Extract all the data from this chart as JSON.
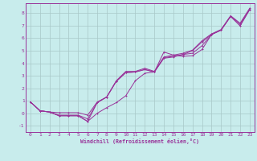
{
  "background_color": "#c8ecec",
  "grid_color": "#a8c8c8",
  "line_color": "#993399",
  "xlabel": "Windchill (Refroidissement éolien,°C)",
  "xlim": [
    -0.5,
    23.5
  ],
  "ylim": [
    -1.5,
    8.8
  ],
  "xticks": [
    0,
    1,
    2,
    3,
    4,
    5,
    6,
    7,
    8,
    9,
    10,
    11,
    12,
    13,
    14,
    15,
    16,
    17,
    18,
    19,
    20,
    21,
    22,
    23
  ],
  "yticks": [
    -1,
    0,
    1,
    2,
    3,
    4,
    5,
    6,
    7,
    8
  ],
  "line1_x": [
    0,
    1,
    2,
    3,
    4,
    5,
    6,
    7,
    8,
    9,
    10,
    11,
    12,
    13,
    14,
    15,
    16,
    17,
    18,
    19,
    20,
    21,
    22,
    23
  ],
  "line1_y": [
    0.9,
    0.2,
    0.1,
    -0.2,
    -0.2,
    -0.2,
    -0.65,
    0.0,
    0.45,
    0.85,
    1.4,
    2.6,
    3.2,
    3.3,
    4.9,
    4.65,
    4.55,
    4.6,
    5.1,
    6.3,
    6.65,
    7.75,
    7.0,
    8.3
  ],
  "line2_x": [
    0,
    1,
    2,
    3,
    4,
    5,
    6,
    7,
    8,
    9,
    10,
    11,
    12,
    13,
    14,
    15,
    16,
    17,
    18,
    19,
    20,
    21,
    22,
    23
  ],
  "line2_y": [
    0.9,
    0.2,
    0.1,
    -0.2,
    -0.2,
    -0.2,
    -0.65,
    0.85,
    1.3,
    2.55,
    3.25,
    3.3,
    3.5,
    3.3,
    4.4,
    4.5,
    4.7,
    4.8,
    5.4,
    6.3,
    6.65,
    7.75,
    7.0,
    8.3
  ],
  "line3_x": [
    0,
    1,
    2,
    3,
    4,
    5,
    6,
    7,
    8,
    9,
    10,
    11,
    12,
    13,
    14,
    15,
    16,
    17,
    18,
    19,
    20,
    21,
    22,
    23
  ],
  "line3_y": [
    0.9,
    0.2,
    0.1,
    -0.15,
    -0.15,
    -0.15,
    -0.45,
    0.85,
    1.3,
    2.55,
    3.25,
    3.3,
    3.5,
    3.3,
    4.45,
    4.55,
    4.7,
    5.0,
    5.7,
    6.3,
    6.65,
    7.75,
    7.15,
    8.3
  ],
  "line4_x": [
    0,
    1,
    2,
    3,
    4,
    5,
    6,
    7,
    8,
    9,
    10,
    11,
    12,
    13,
    14,
    15,
    16,
    17,
    18,
    19,
    20,
    21,
    22,
    23
  ],
  "line4_y": [
    0.9,
    0.2,
    0.1,
    0.05,
    0.05,
    0.05,
    -0.15,
    0.9,
    1.3,
    2.6,
    3.35,
    3.35,
    3.6,
    3.35,
    4.5,
    4.65,
    4.8,
    5.05,
    5.8,
    6.35,
    6.7,
    7.8,
    7.2,
    8.4
  ]
}
